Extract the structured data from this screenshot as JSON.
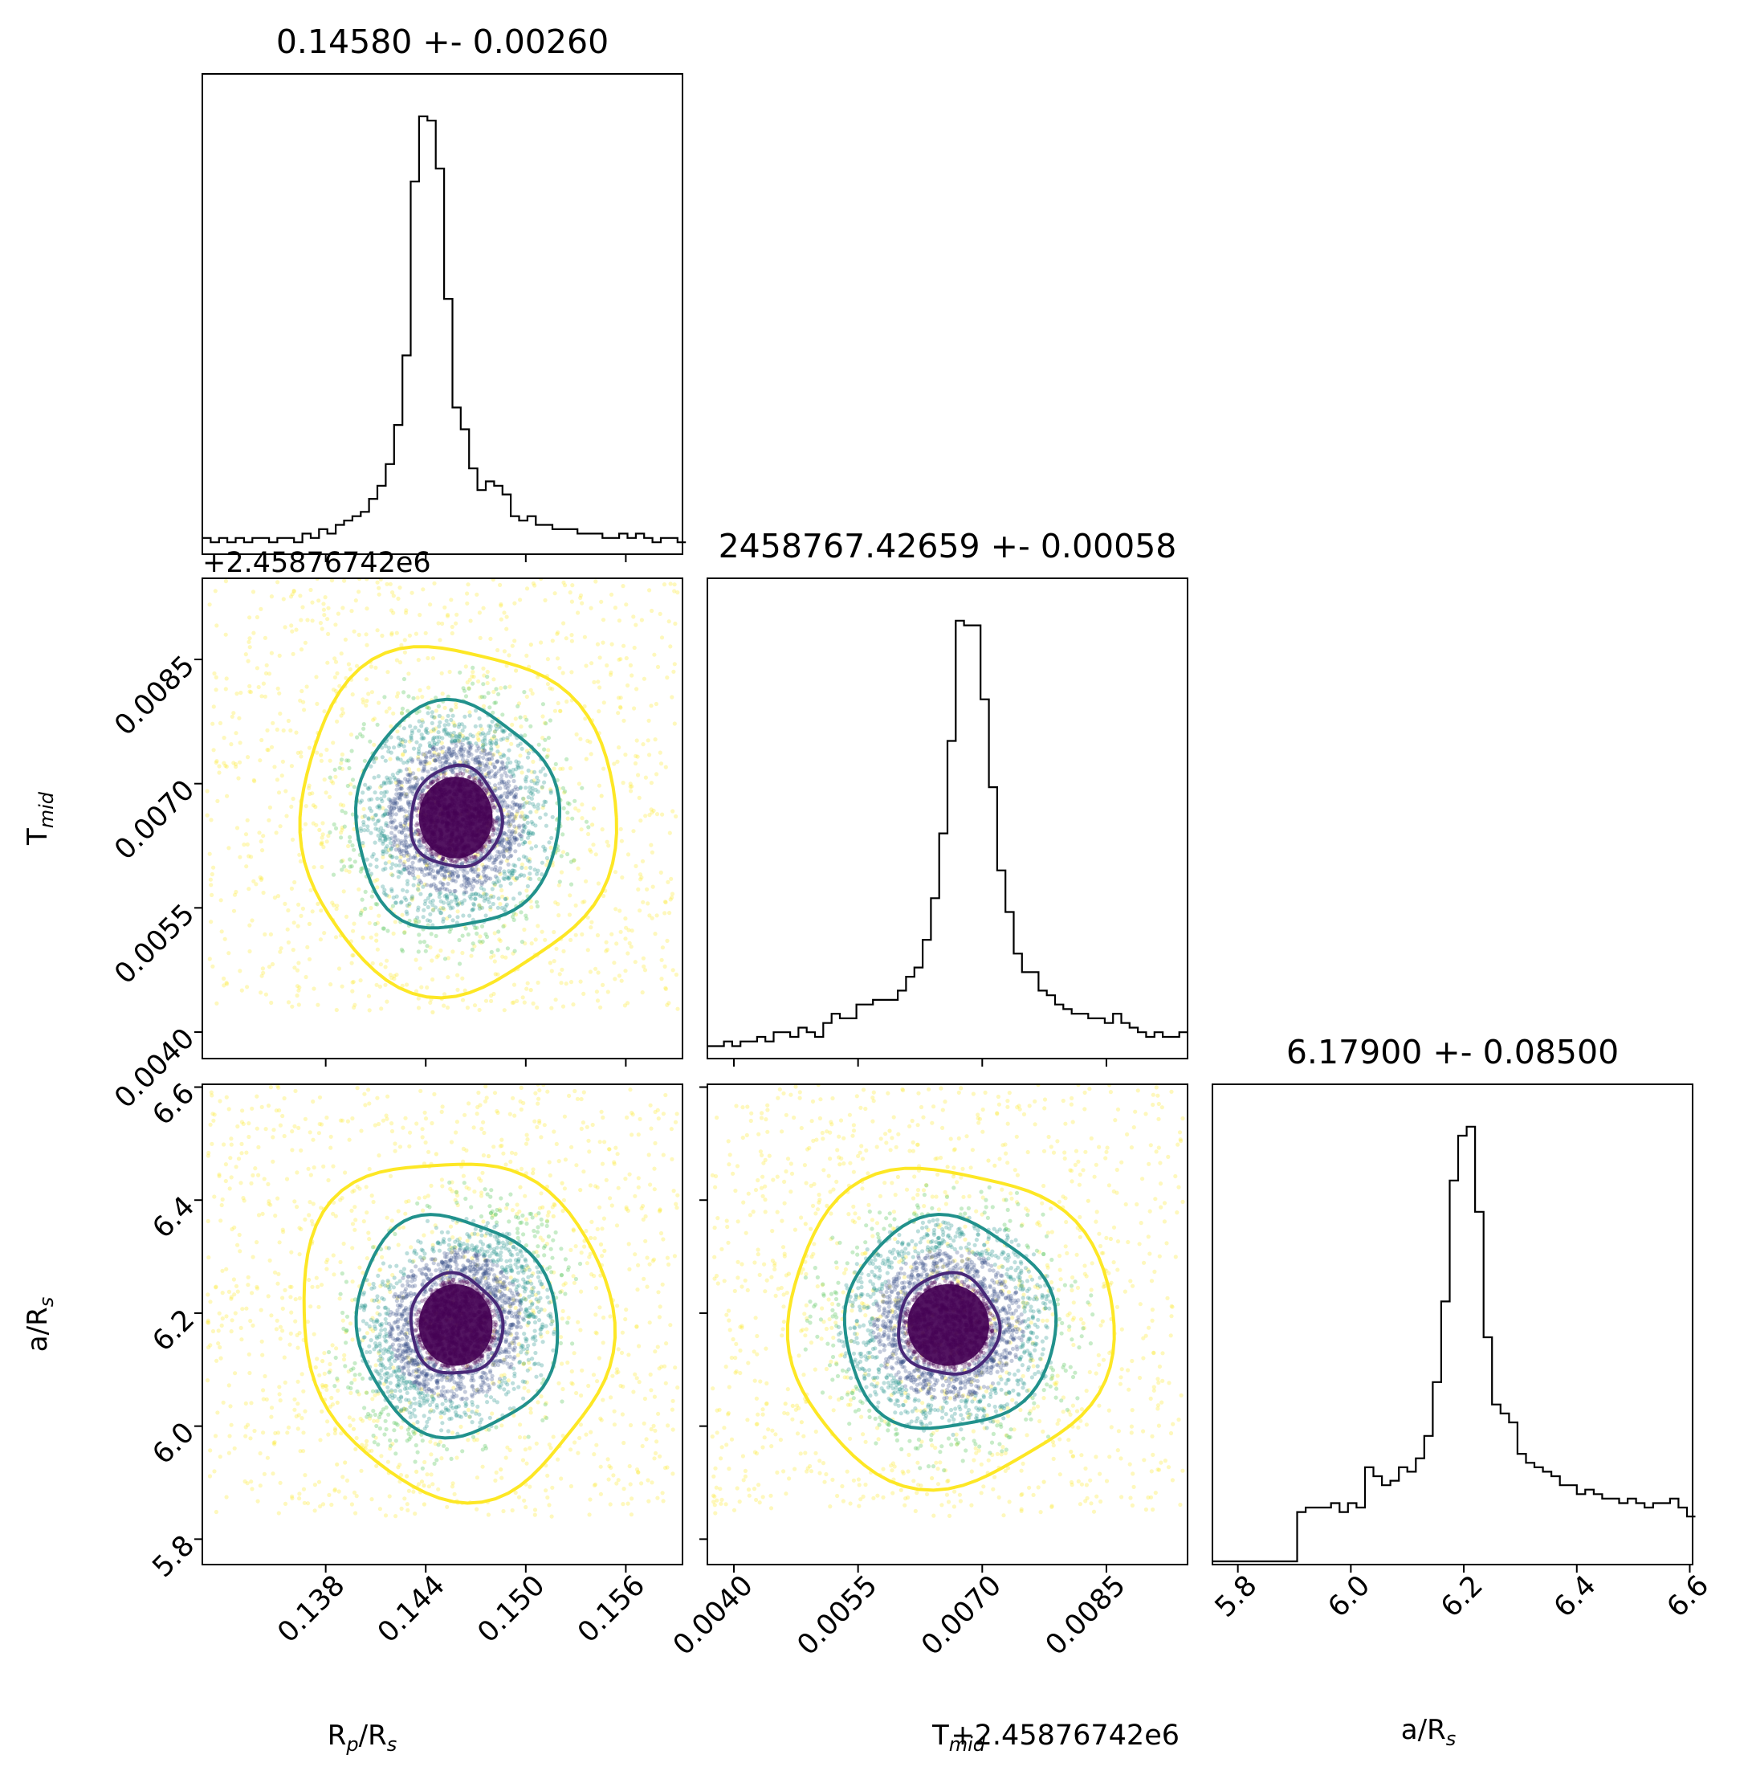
{
  "chart_data": {
    "type": "corner",
    "parameters": [
      {
        "key": "rp",
        "label_main": "R",
        "label_sub1": "p",
        "label_mid": "/R",
        "label_sub2": "s",
        "title": "0.14580 +- 0.00260",
        "range": [
          0.1306,
          0.1594
        ],
        "ticks": [
          0.138,
          0.144,
          0.15,
          0.156
        ],
        "tick_labels": [
          "0.138",
          "0.144",
          "0.150",
          "0.156"
        ],
        "offset": ""
      },
      {
        "key": "tmid",
        "label_main": "T",
        "label_sub1": "mid",
        "label_mid": "",
        "label_sub2": "",
        "title": "2458767.42659 +- 0.00058",
        "range": [
          0.00368,
          0.00948
        ],
        "ticks": [
          0.004,
          0.0055,
          0.007,
          0.0085
        ],
        "tick_labels": [
          "0.0040",
          "0.0055",
          "0.0070",
          "0.0085"
        ],
        "offset": "+2.45876742e6"
      },
      {
        "key": "ars",
        "label_main": "a/R",
        "label_sub1": "s",
        "label_mid": "",
        "label_sub2": "",
        "title": "6.17900 +- 0.08500",
        "range": [
          5.755,
          6.605
        ],
        "ticks": [
          5.8,
          6.0,
          6.2,
          6.4,
          6.6
        ],
        "tick_labels": [
          "5.8",
          "6.0",
          "6.2",
          "6.4",
          "6.6"
        ],
        "offset": ""
      }
    ],
    "histograms": {
      "rp": {
        "bins": [
          0.1306,
          0.1311,
          0.1316,
          0.1321,
          0.1326,
          0.1331,
          0.1336,
          0.1341,
          0.1346,
          0.1351,
          0.1356,
          0.1361,
          0.1366,
          0.1371,
          0.1376,
          0.1381,
          0.1386,
          0.1391,
          0.1396,
          0.1401,
          0.1406,
          0.1411,
          0.1416,
          0.1421,
          0.1426,
          0.1431,
          0.1436,
          0.1441,
          0.1446,
          0.1451,
          0.1456,
          0.1461,
          0.1466,
          0.1471,
          0.1476,
          0.1481,
          0.1486,
          0.1491,
          0.1496,
          0.1501,
          0.1506,
          0.1511,
          0.1516,
          0.1521,
          0.1526,
          0.1531,
          0.1536,
          0.1541,
          0.1546,
          0.1551,
          0.1556,
          0.1561,
          0.1566,
          0.1571,
          0.1576,
          0.1581,
          0.1586,
          0.1591
        ],
        "counts": [
          3,
          2,
          3,
          2,
          3,
          2,
          3,
          3,
          2,
          3,
          3,
          2,
          4,
          3,
          5,
          4,
          6,
          7,
          8,
          9,
          12,
          15,
          20,
          29,
          45,
          85,
          100,
          99,
          88,
          58,
          33,
          28,
          19,
          14,
          16,
          15,
          13,
          8,
          7,
          8,
          6,
          6,
          5,
          5,
          5,
          4,
          4,
          4,
          3,
          3,
          4,
          3,
          4,
          3,
          2,
          3,
          3,
          2
        ]
      },
      "tmid": {
        "bins": [
          0.00368,
          0.00378,
          0.00388,
          0.00398,
          0.00408,
          0.00418,
          0.00428,
          0.00438,
          0.00448,
          0.00458,
          0.00468,
          0.00478,
          0.00488,
          0.00498,
          0.00508,
          0.00518,
          0.00528,
          0.00538,
          0.00548,
          0.00558,
          0.00568,
          0.00578,
          0.00588,
          0.00598,
          0.00608,
          0.00618,
          0.00628,
          0.00638,
          0.00648,
          0.00658,
          0.00668,
          0.00678,
          0.00688,
          0.00698,
          0.00708,
          0.00718,
          0.00728,
          0.00738,
          0.00748,
          0.00758,
          0.00768,
          0.00778,
          0.00788,
          0.00798,
          0.00808,
          0.00818,
          0.00828,
          0.00838,
          0.00848,
          0.00858,
          0.00868,
          0.00878,
          0.00888,
          0.00898,
          0.00908,
          0.00918,
          0.00928,
          0.00938
        ],
        "counts": [
          2,
          2,
          3,
          2,
          3,
          3,
          4,
          3,
          5,
          5,
          4,
          6,
          5,
          4,
          7,
          9,
          8,
          8,
          11,
          11,
          12,
          12,
          12,
          14,
          17,
          19,
          25,
          34,
          48,
          68,
          94,
          93,
          93,
          77,
          58,
          40,
          31,
          22,
          18,
          18,
          14,
          13,
          11,
          10,
          9,
          9,
          8,
          8,
          7,
          9,
          7,
          6,
          5,
          4,
          5,
          4,
          4,
          5
        ]
      },
      "ars": {
        "bins": [
          5.755,
          5.77,
          5.785,
          5.8,
          5.815,
          5.83,
          5.845,
          5.86,
          5.875,
          5.89,
          5.905,
          5.92,
          5.935,
          5.95,
          5.965,
          5.98,
          5.995,
          6.01,
          6.025,
          6.04,
          6.055,
          6.07,
          6.085,
          6.1,
          6.115,
          6.13,
          6.145,
          6.16,
          6.175,
          6.19,
          6.205,
          6.22,
          6.235,
          6.25,
          6.265,
          6.28,
          6.295,
          6.31,
          6.325,
          6.34,
          6.355,
          6.37,
          6.385,
          6.4,
          6.415,
          6.43,
          6.445,
          6.46,
          6.475,
          6.49,
          6.505,
          6.52,
          6.535,
          6.55,
          6.565,
          6.58,
          6.595
        ],
        "counts": [
          0,
          0,
          0,
          0,
          0,
          0,
          0,
          0,
          0,
          0,
          11,
          12,
          12,
          12,
          13,
          11,
          13,
          12,
          21,
          19,
          17,
          18,
          21,
          20,
          23,
          28,
          40,
          58,
          85,
          95,
          97,
          78,
          50,
          35,
          33,
          31,
          24,
          22,
          21,
          20,
          19,
          17,
          17,
          15,
          16,
          15,
          14,
          14,
          13,
          14,
          13,
          12,
          13,
          13,
          14,
          12,
          10
        ]
      }
    },
    "scatter_pairs": [
      {
        "x": "rp",
        "y": "tmid",
        "center": [
          0.1458,
          0.00659
        ],
        "sigma": [
          0.0026,
          0.00058
        ],
        "corr": 0.0,
        "contours": [
          {
            "level": "inner",
            "color": "#482878",
            "rx_sigma": 1.05,
            "ry_sigma": 1.05
          },
          {
            "level": "middle",
            "color": "#21918c",
            "rx_sigma": 2.35,
            "ry_sigma": 2.35
          },
          {
            "level": "outer",
            "color": "#fde725",
            "rx_sigma": 3.65,
            "ry_sigma": 3.6
          }
        ]
      },
      {
        "x": "rp",
        "y": "ars",
        "center": [
          0.1458,
          6.179
        ],
        "sigma": [
          0.0026,
          0.085
        ],
        "corr": 0.35,
        "contours": [
          {
            "level": "inner",
            "color": "#482878",
            "rx_sigma": 1.05,
            "ry_sigma": 1.05
          },
          {
            "level": "middle",
            "color": "#21918c",
            "rx_sigma": 2.3,
            "ry_sigma": 2.3
          },
          {
            "level": "outer",
            "color": "#fde725",
            "rx_sigma": 3.55,
            "ry_sigma": 3.55
          }
        ]
      },
      {
        "x": "tmid",
        "y": "ars",
        "center": [
          0.00659,
          6.179
        ],
        "sigma": [
          0.00058,
          0.085
        ],
        "corr": 0.0,
        "contours": [
          {
            "level": "inner",
            "color": "#482878",
            "rx_sigma": 1.05,
            "ry_sigma": 1.05
          },
          {
            "level": "middle",
            "color": "#21918c",
            "rx_sigma": 2.2,
            "ry_sigma": 2.2
          },
          {
            "level": "outer",
            "color": "#fde725",
            "rx_sigma": 3.4,
            "ry_sigma": 3.3
          }
        ]
      }
    ],
    "point_colors": [
      "#fde725",
      "#5ec962",
      "#21918c",
      "#3b528b",
      "#440154"
    ]
  }
}
